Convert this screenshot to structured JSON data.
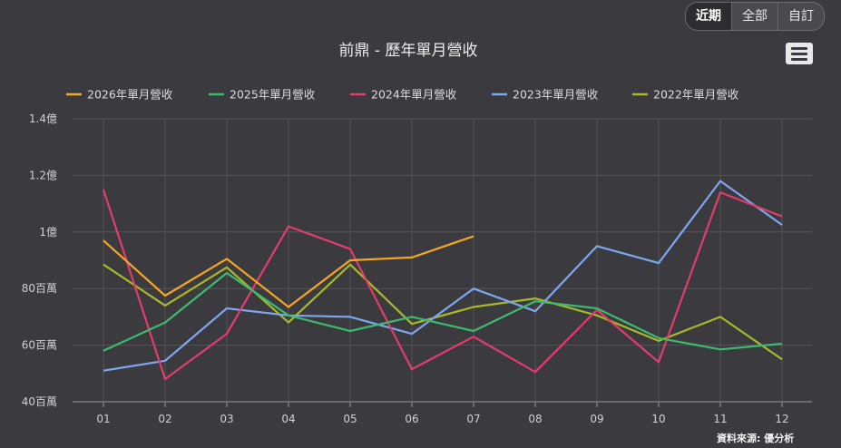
{
  "range_buttons": [
    {
      "label": "近期",
      "active": true
    },
    {
      "label": "全部",
      "active": false
    },
    {
      "label": "自訂",
      "active": false
    }
  ],
  "menu_icon": "hamburger-menu-icon",
  "source_text": "資料來源: 優分析",
  "chart_data": {
    "type": "line",
    "title": "前鼎 - 歷年單月營收",
    "xlabel": "",
    "ylabel": "",
    "categories": [
      "01",
      "02",
      "03",
      "04",
      "05",
      "06",
      "07",
      "08",
      "09",
      "10",
      "11",
      "12"
    ],
    "y_ticks": [
      {
        "value": 40000000,
        "label": "40百萬"
      },
      {
        "value": 60000000,
        "label": "60百萬"
      },
      {
        "value": 80000000,
        "label": "80百萬"
      },
      {
        "value": 100000000,
        "label": "1億"
      },
      {
        "value": 120000000,
        "label": "1.2億"
      },
      {
        "value": 140000000,
        "label": "1.4億"
      }
    ],
    "ylim": [
      40000000,
      140000000
    ],
    "grid": true,
    "legend_position": "top",
    "series": [
      {
        "name": "2026年單月營收",
        "color": "#f5a623",
        "values": [
          97000000,
          77500000,
          90500000,
          73500000,
          90000000,
          91000000,
          98500000,
          null,
          null,
          null,
          null,
          null
        ]
      },
      {
        "name": "2025年單月營收",
        "color": "#3dba6f",
        "values": [
          58000000,
          68000000,
          85500000,
          70500000,
          65000000,
          70000000,
          65000000,
          75500000,
          73000000,
          62500000,
          58500000,
          60500000
        ]
      },
      {
        "name": "2024年單月營收",
        "color": "#e23c6c",
        "values": [
          115000000,
          48000000,
          64000000,
          102000000,
          94000000,
          51500000,
          63000000,
          50500000,
          72500000,
          54000000,
          114000000,
          105500000
        ]
      },
      {
        "name": "2023年單月營收",
        "color": "#7ea7f0",
        "values": [
          51000000,
          54500000,
          73000000,
          70500000,
          70000000,
          64000000,
          80000000,
          72000000,
          95000000,
          89000000,
          118000000,
          102500000
        ]
      },
      {
        "name": "2022年單月營收",
        "color": "#a7b928",
        "values": [
          88500000,
          74000000,
          87500000,
          68000000,
          88500000,
          67500000,
          73500000,
          76500000,
          70500000,
          61500000,
          70000000,
          55000000
        ]
      }
    ]
  }
}
